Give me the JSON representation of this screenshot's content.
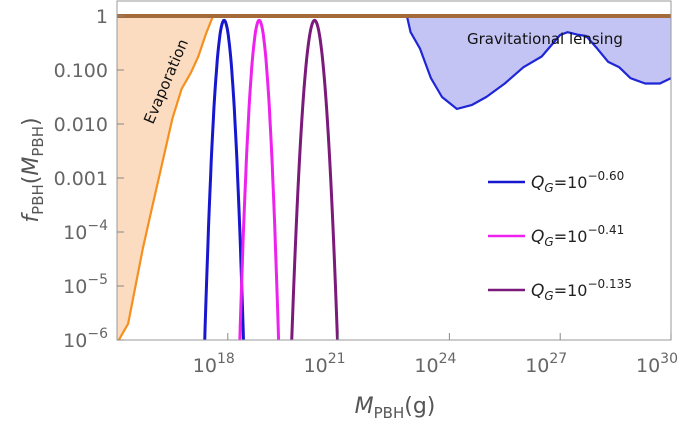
{
  "chart_data": {
    "type": "area",
    "xscale": "log",
    "yscale": "log",
    "xlim": [
      "1e15",
      "1e30"
    ],
    "ylim": [
      "1e-6",
      "1"
    ],
    "xlabel": {
      "main": "M",
      "sub": "PBH",
      "unit": "(g)"
    },
    "ylabel": {
      "f": "f",
      "f_sub": "PBH",
      "M": "M",
      "M_sub": "PBH"
    },
    "xticks": [
      {
        "value": "1e18",
        "base": "10",
        "exp": "18"
      },
      {
        "value": "1e21",
        "base": "10",
        "exp": "21"
      },
      {
        "value": "1e24",
        "base": "10",
        "exp": "24"
      },
      {
        "value": "1e27",
        "base": "10",
        "exp": "27"
      },
      {
        "value": "1e30",
        "base": "10",
        "exp": "30"
      }
    ],
    "yticks": [
      {
        "value": "1",
        "text": "1"
      },
      {
        "value": "0.1",
        "text": "0.100"
      },
      {
        "value": "0.01",
        "text": "0.010"
      },
      {
        "value": "0.001",
        "text": "0.001"
      },
      {
        "value": "1e-4",
        "base": "10",
        "exp": "−4"
      },
      {
        "value": "1e-5",
        "base": "10",
        "exp": "−5"
      },
      {
        "value": "1e-6",
        "base": "10",
        "exp": "−6"
      }
    ],
    "regions": [
      {
        "label": "Evaporation",
        "fill": "#fbdcc0",
        "stroke": "#f5901e",
        "boundary": [
          [
            15.05,
            -6.0
          ],
          [
            15.3,
            -5.7
          ],
          [
            15.5,
            -5.0
          ],
          [
            15.7,
            -4.3
          ],
          [
            15.9,
            -3.7
          ],
          [
            16.1,
            -3.1
          ],
          [
            16.3,
            -2.5
          ],
          [
            16.5,
            -1.9
          ],
          [
            16.75,
            -1.35
          ],
          [
            17.0,
            -1.05
          ],
          [
            17.2,
            -0.75
          ],
          [
            17.4,
            -0.35
          ],
          [
            17.6,
            0.0
          ]
        ]
      },
      {
        "label": "Gravitational lensing",
        "fill": "#c4c4f4",
        "stroke": "#1f26d6",
        "boundary": [
          [
            22.85,
            0.0
          ],
          [
            22.95,
            -0.3
          ],
          [
            23.2,
            -0.6
          ],
          [
            23.5,
            -1.15
          ],
          [
            23.8,
            -1.5
          ],
          [
            24.2,
            -1.72
          ],
          [
            24.6,
            -1.65
          ],
          [
            25.0,
            -1.5
          ],
          [
            25.5,
            -1.25
          ],
          [
            26.0,
            -0.95
          ],
          [
            26.5,
            -0.75
          ],
          [
            27.0,
            -0.35
          ],
          [
            27.2,
            -0.3
          ],
          [
            27.5,
            -0.35
          ],
          [
            27.7,
            -0.37
          ],
          [
            28.0,
            -0.6
          ],
          [
            28.3,
            -0.85
          ],
          [
            28.6,
            -0.95
          ],
          [
            28.9,
            -1.15
          ],
          [
            29.3,
            -1.25
          ],
          [
            29.7,
            -1.25
          ],
          [
            30.0,
            -1.15
          ]
        ]
      }
    ],
    "bound_line": {
      "y": "1",
      "color": "#a46a3a"
    },
    "series": [
      {
        "name": "Q_G=10^{-0.60}",
        "Q": "Q",
        "sub": "G",
        "base": "=10",
        "exp": "−0.60",
        "color": "#1717cf",
        "center": 17.9,
        "halfwidth": 0.55
      },
      {
        "name": "Q_G=10^{-0.41}",
        "Q": "Q",
        "sub": "G",
        "base": "=10",
        "exp": "−0.41",
        "color": "#ee22ee",
        "center": 18.85,
        "halfwidth": 0.55
      },
      {
        "name": "Q_G=10^{-0.135}",
        "Q": "Q",
        "sub": "G",
        "base": "=10",
        "exp": "−0.135",
        "color": "#7c1a7c",
        "center": 20.35,
        "halfwidth": 0.65
      }
    ]
  }
}
